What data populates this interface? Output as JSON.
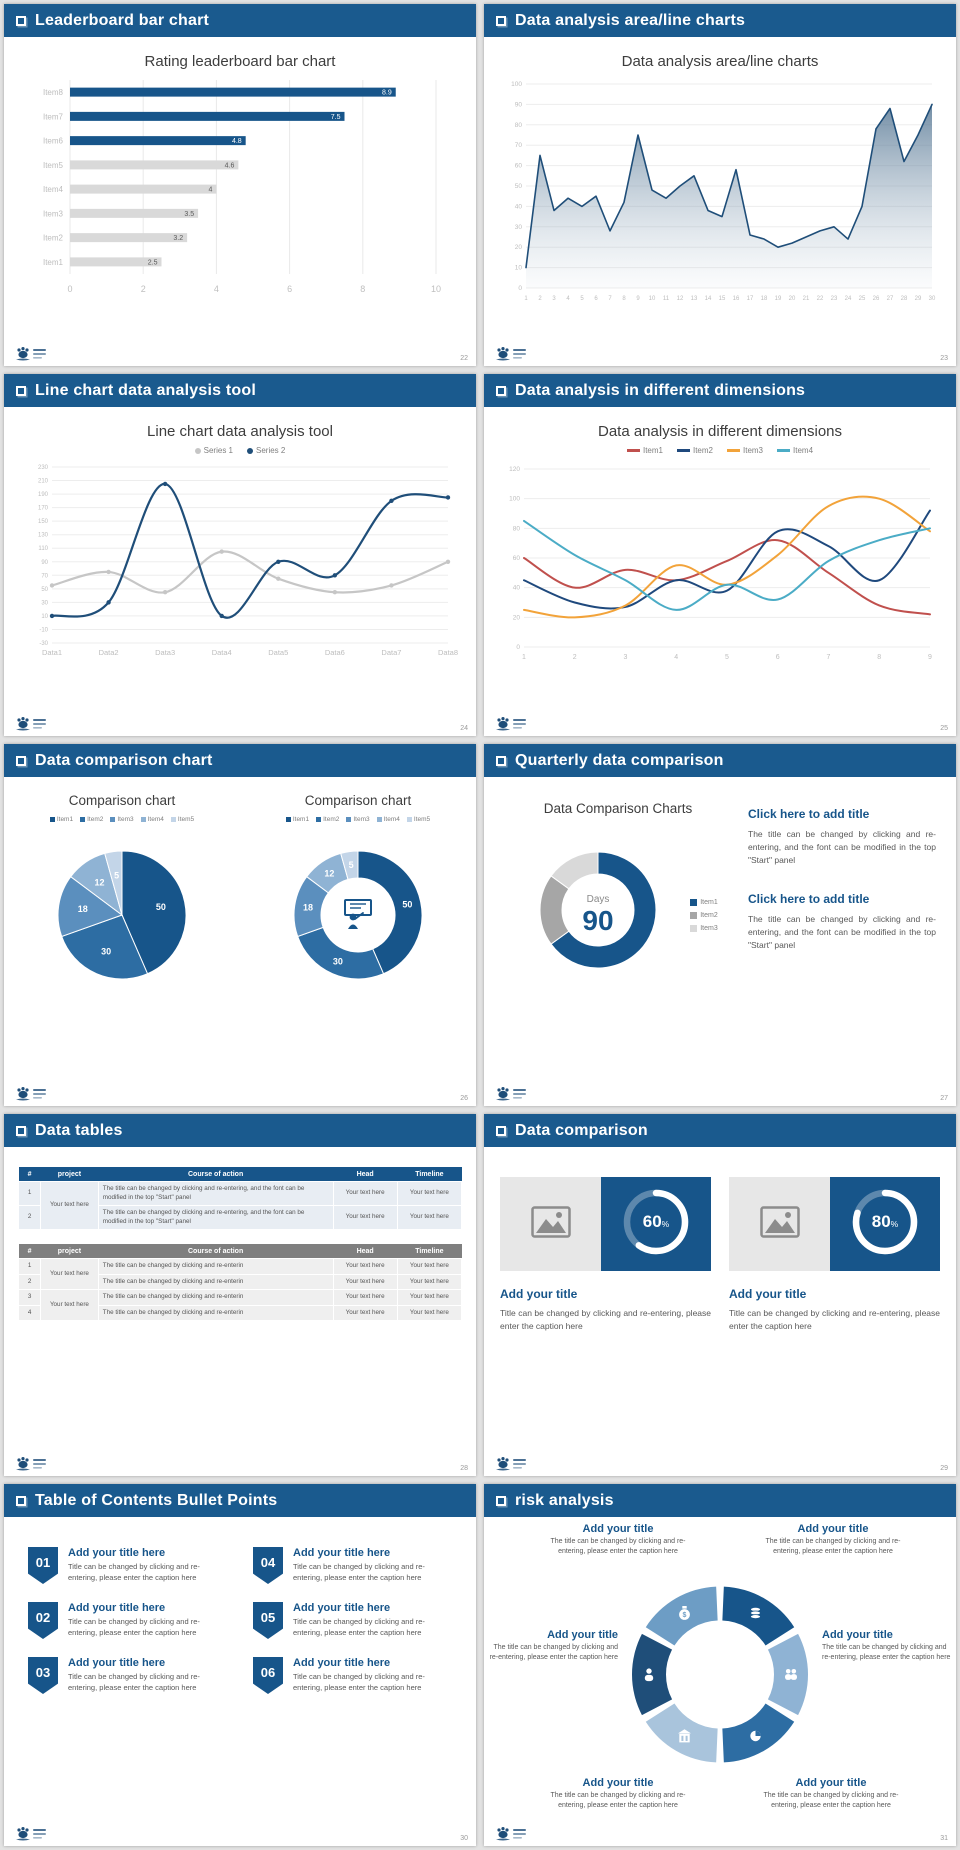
{
  "slides": {
    "s1": {
      "header": "Leaderboard bar chart",
      "page": "22",
      "title": "Rating leaderboard bar chart",
      "chart": {
        "type": "bar-horizontal",
        "categories": [
          "Item1",
          "Item2",
          "Item3",
          "Item4",
          "Item5",
          "Item6",
          "Item7",
          "Item8"
        ],
        "values": [
          2.5,
          3.2,
          3.5,
          4,
          4.6,
          4.8,
          7.5,
          8.9
        ],
        "highlight_count": 3,
        "xlim": [
          0,
          10
        ],
        "xticks": [
          0,
          2,
          4,
          6,
          8,
          10
        ],
        "bar_color": "#17558a",
        "bar_color_muted": "#d9d9d9"
      }
    },
    "s2": {
      "header": "Data analysis area/line charts",
      "page": "23",
      "title": "Data analysis area/line charts",
      "chart": {
        "type": "area",
        "x": [
          1,
          2,
          3,
          4,
          5,
          6,
          7,
          8,
          9,
          10,
          11,
          12,
          13,
          14,
          15,
          16,
          17,
          18,
          19,
          20,
          21,
          22,
          23,
          24,
          25,
          26,
          27,
          28,
          29,
          30
        ],
        "values": [
          10,
          65,
          38,
          44,
          40,
          45,
          28,
          42,
          75,
          48,
          44,
          50,
          55,
          38,
          35,
          58,
          26,
          24,
          20,
          22,
          25,
          28,
          30,
          24,
          40,
          78,
          88,
          62,
          75,
          90
        ],
        "ylim": [
          0,
          100
        ],
        "ystep": 10,
        "stroke": "#1f4e79"
      }
    },
    "s3": {
      "header": "Line chart data analysis tool",
      "page": "24",
      "title": "Line chart data analysis tool",
      "chart": {
        "type": "line",
        "categories": [
          "Data1",
          "Data2",
          "Data3",
          "Data4",
          "Data5",
          "Data6",
          "Data7",
          "Data8"
        ],
        "ylim": [
          -30,
          230
        ],
        "ystep": 20,
        "series": [
          {
            "name": "Series 1",
            "color": "#c6c6c6",
            "values": [
              55,
              75,
              45,
              105,
              65,
              45,
              55,
              90
            ]
          },
          {
            "name": "Series 2",
            "color": "#1f4e79",
            "values": [
              10,
              30,
              205,
              10,
              90,
              70,
              180,
              185
            ]
          }
        ]
      }
    },
    "s4": {
      "header": "Data analysis in different dimensions",
      "page": "25",
      "title": "Data analysis in different dimensions",
      "chart": {
        "type": "line",
        "x": [
          1,
          2,
          3,
          4,
          5,
          6,
          7,
          8,
          9
        ],
        "ylim": [
          0,
          120
        ],
        "ystep": 20,
        "series": [
          {
            "name": "Item1",
            "color": "#c0504d",
            "values": [
              60,
              40,
              52,
              45,
              58,
              72,
              50,
              28,
              22
            ]
          },
          {
            "name": "Item2",
            "color": "#1f497d",
            "values": [
              45,
              30,
              27,
              45,
              38,
              78,
              68,
              45,
              92
            ]
          },
          {
            "name": "Item3",
            "color": "#f2a33a",
            "values": [
              25,
              20,
              28,
              55,
              42,
              62,
              95,
              100,
              78
            ]
          },
          {
            "name": "Item4",
            "color": "#4bacc6",
            "values": [
              85,
              62,
              45,
              25,
              42,
              32,
              58,
              72,
              80
            ]
          }
        ]
      }
    },
    "s5": {
      "header": "Data comparison chart",
      "page": "26",
      "left_title": "Comparison chart",
      "right_title": "Comparison chart",
      "legend": [
        "Item1",
        "Item2",
        "Item3",
        "Item4",
        "Item5"
      ],
      "values": [
        50,
        30,
        18,
        12,
        5
      ],
      "colors": [
        "#17558a",
        "#2d6da3",
        "#5b8fbe",
        "#8fb3d4",
        "#c3d5e8"
      ]
    },
    "s6": {
      "header": "Quarterly data comparison",
      "page": "27",
      "chart_title": "Data Comparison Charts",
      "center_label": "Days",
      "center_value": "90",
      "legend": [
        "Item1",
        "Item2",
        "Item3"
      ],
      "values": [
        65,
        20,
        15
      ],
      "colors": [
        "#17558a",
        "#a6a6a6",
        "#d9d9d9"
      ],
      "blocks": [
        {
          "title": "Click here to add title",
          "body": "The title can be changed by clicking and re-entering, and the font can be modified in the top \"Start\" panel"
        },
        {
          "title": "Click here to add title",
          "body": "The title can be changed by clicking and re-entering, and the font can be modified in the top \"Start\" panel"
        }
      ]
    },
    "s7": {
      "header": "Data tables",
      "page": "28",
      "table1": {
        "columns": [
          "#",
          "project",
          "Course of action",
          "Head",
          "Timeline"
        ],
        "rows": [
          [
            "1",
            "Your text here",
            "The title can be changed by clicking and re-entering, and the font can be modified in the top \"Start\" panel",
            "Your text here",
            "Your text here"
          ],
          [
            "2",
            "",
            "The title can be changed by clicking and re-entering, and the font can be modified in the top \"Start\" panel",
            "Your text here",
            "Your text here"
          ]
        ]
      },
      "table2": {
        "columns": [
          "#",
          "project",
          "Course of action",
          "Head",
          "Timeline"
        ],
        "rows": [
          [
            "1",
            "Your text here",
            "The title can be changed by clicking and re-enterin",
            "Your text here",
            "Your text here"
          ],
          [
            "2",
            "",
            "The title can be changed by clicking and re-enterin",
            "Your text here",
            "Your text here"
          ],
          [
            "3",
            "Your text here",
            "The title can be changed by clicking and re-enterin",
            "Your text here",
            "Your text here"
          ],
          [
            "4",
            "",
            "The title can be changed by clicking and re-enterin",
            "Your text here",
            "Your text here"
          ]
        ]
      }
    },
    "s8": {
      "header": "Data comparison",
      "page": "29",
      "cards": [
        {
          "percent": 60,
          "title": "Add your title",
          "caption": "Title can be changed by clicking and re-entering, please enter the caption here"
        },
        {
          "percent": 80,
          "title": "Add your title",
          "caption": "Title can be changed by clicking and re-entering, please enter the caption here"
        }
      ]
    },
    "s9": {
      "header": "Table of Contents Bullet Points",
      "page": "30",
      "items": [
        {
          "num": "01",
          "title": "Add your title here",
          "caption": "Title can be changed by clicking and re-entering, please enter the caption here"
        },
        {
          "num": "02",
          "title": "Add your title here",
          "caption": "Title can be changed by clicking and re-entering, please enter the caption here"
        },
        {
          "num": "03",
          "title": "Add your title here",
          "caption": "Title can be changed by clicking and re-entering, please enter the caption here"
        },
        {
          "num": "04",
          "title": "Add your title here",
          "caption": "Title can be changed by clicking and re-entering, please enter the caption here"
        },
        {
          "num": "05",
          "title": "Add your title here",
          "caption": "Title can be changed by clicking and re-entering, please enter the caption here"
        },
        {
          "num": "06",
          "title": "Add your title here",
          "caption": "Title can be changed by clicking and re-entering, please enter the caption here"
        }
      ]
    },
    "s10": {
      "header": "risk analysis",
      "page": "31",
      "wheel_colors": [
        "#17558a",
        "#8fb3d4",
        "#2d6da3",
        "#a9c4dc",
        "#1f4e79",
        "#6d9dc5"
      ],
      "icons": [
        "coins",
        "people",
        "pie-chart",
        "building",
        "person",
        "money-bag"
      ],
      "items": [
        {
          "pos": "top-left",
          "title": "Add your title",
          "caption": "The title can be changed by clicking and re-entering, please enter the caption here"
        },
        {
          "pos": "top-right",
          "title": "Add your title",
          "caption": "The title can be changed by clicking and re-entering, please enter the caption here"
        },
        {
          "pos": "mid-left",
          "title": "Add your title",
          "caption": "The title can be changed by clicking and re-entering, please enter the caption here"
        },
        {
          "pos": "mid-right",
          "title": "Add your title",
          "caption": "The title can be changed by clicking and re-entering, please enter the caption here"
        },
        {
          "pos": "bottom-left",
          "title": "Add your title",
          "caption": "The title can be changed by clicking and re-entering, please enter the caption here"
        },
        {
          "pos": "bottom-right",
          "title": "Add your title",
          "caption": "The title can be changed by clicking and re-entering, please enter the caption here"
        }
      ]
    }
  }
}
